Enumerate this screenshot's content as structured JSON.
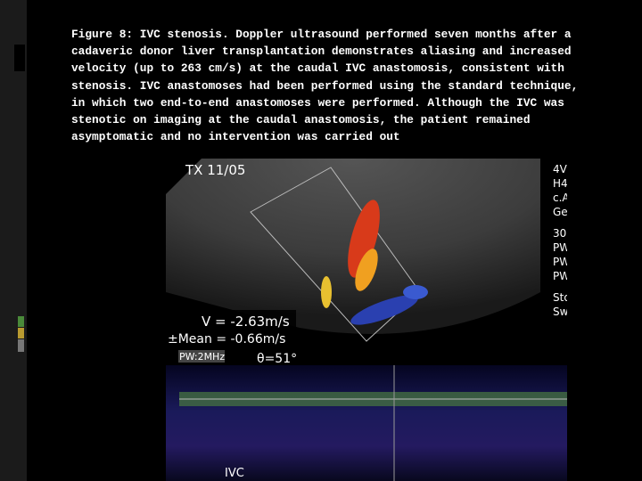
{
  "caption": {
    "lines": [
      "Figure 8: IVC stenosis. Doppler ultrasound performed seven months after a",
      "cadaveric donor liver transplantation demonstrates aliasing and increased",
      "velocity (up to 263 cm/s) at the caudal IVC anastomosis, consistent with",
      "stenosis. IVC anastomoses had been performed using the standard technique,",
      "in which two end-to-end anastomoses were performed. Although the IVC was",
      "stenotic on imaging at the caudal anastomosis, the patient remained",
      "asymptomatic and no intervention was carried out"
    ]
  },
  "image": {
    "date": "TX 11/05",
    "velocity": "V = -2.63m/s",
    "mean": "±Mean = -0.66m/s",
    "mode": "PW:2MHz",
    "angle": "θ=51°",
    "vessel": "IVC",
    "side_labels": [
      "4V",
      "H4",
      "c.A",
      "Ge",
      "30",
      "PW",
      "PW",
      "PW",
      "Sto",
      "Sw"
    ]
  }
}
